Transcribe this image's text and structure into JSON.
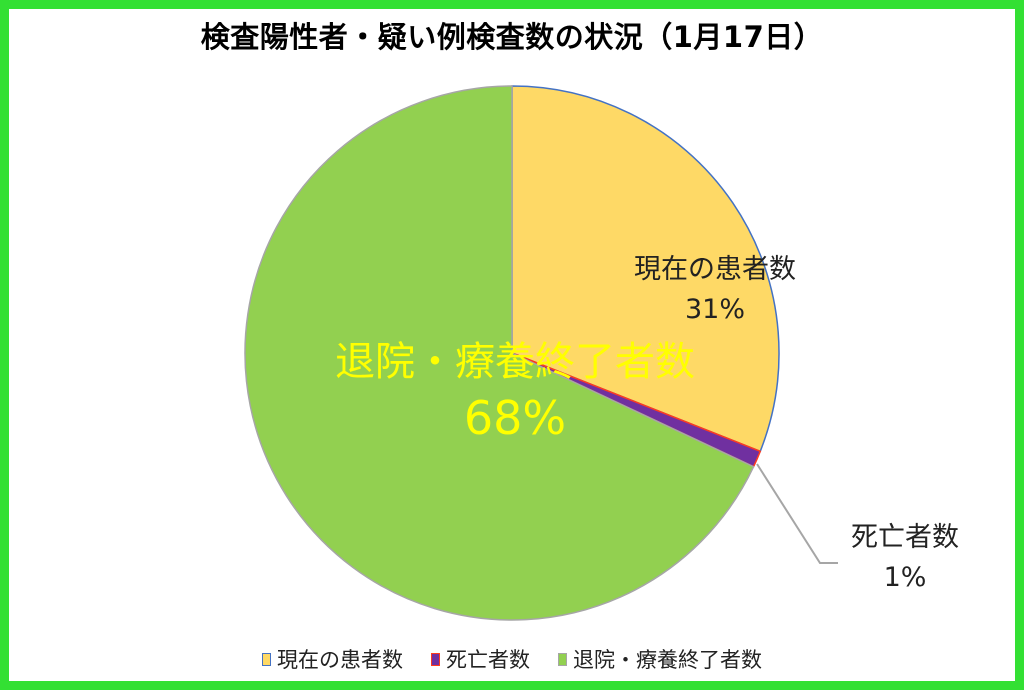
{
  "chart_data": {
    "type": "pie",
    "title": "検査陽性者・疑い例検査数の状況（1月17日）",
    "slices": [
      {
        "name": "現在の患者数",
        "value": 31,
        "label": "31%",
        "color": "#fed966",
        "edge": "#4472c4"
      },
      {
        "name": "死亡者数",
        "value": 1,
        "label": "1%",
        "color": "#7030a0",
        "edge": "#ff3b1f"
      },
      {
        "name": "退院・療養終了者数",
        "value": 68,
        "label": "68%",
        "color": "#92d050",
        "edge": "#a6a6a6"
      }
    ],
    "legend_position": "bottom",
    "start_angle_deg": 0,
    "direction": "clockwise"
  },
  "colors": {
    "border": "#33e033",
    "big_label": "#ffff00"
  }
}
